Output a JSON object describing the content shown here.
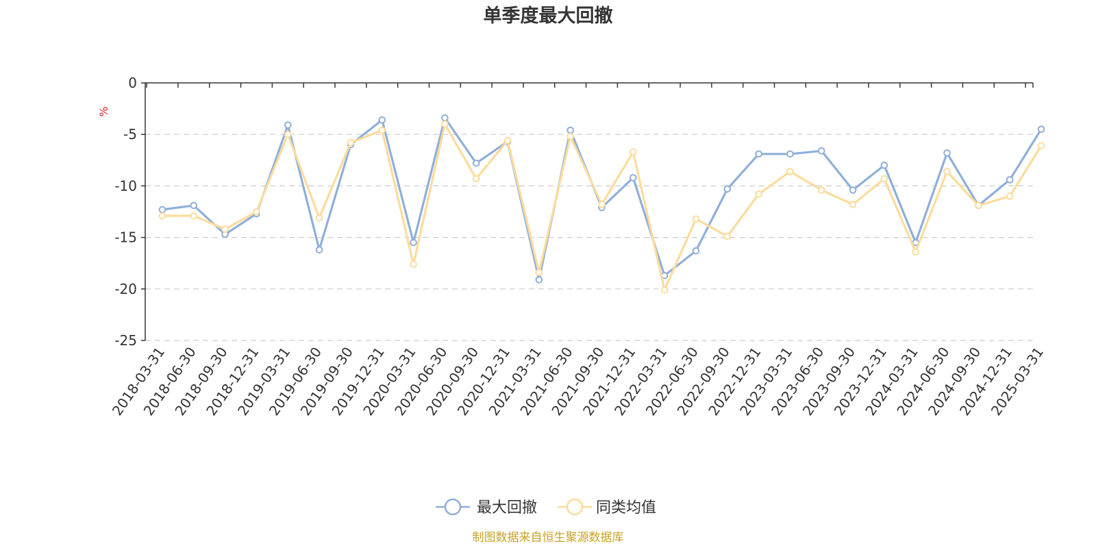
{
  "chart_data": {
    "type": "line",
    "title": "单季度最大回撤",
    "ylabel": "%",
    "ylim": [
      -25,
      0
    ],
    "yticks": [
      0,
      -5,
      -10,
      -15,
      -20,
      -25
    ],
    "grid": true,
    "legend_position": "bottom-center",
    "categories": [
      "2018-03-31",
      "2018-06-30",
      "2018-09-30",
      "2018-12-31",
      "2019-03-31",
      "2019-06-30",
      "2019-09-30",
      "2019-12-31",
      "2020-03-31",
      "2020-06-30",
      "2020-09-30",
      "2020-12-31",
      "2021-03-31",
      "2021-06-30",
      "2021-09-30",
      "2021-12-31",
      "2022-03-31",
      "2022-06-30",
      "2022-09-30",
      "2022-12-31",
      "2023-03-31",
      "2023-06-30",
      "2023-09-30",
      "2023-12-31",
      "2024-03-31",
      "2024-06-30",
      "2024-09-30",
      "2024-12-31",
      "2025-03-31"
    ],
    "series": [
      {
        "name": "最大回撤",
        "color": "#8eafd9",
        "values": [
          -12.3,
          -11.9,
          -14.7,
          -12.7,
          -4.1,
          -16.2,
          -6.0,
          -3.6,
          -15.5,
          -3.4,
          -7.8,
          -5.7,
          -19.1,
          -4.6,
          -12.1,
          -9.2,
          -18.7,
          -16.3,
          -10.3,
          -6.9,
          -6.9,
          -6.6,
          -10.4,
          -8.0,
          -15.5,
          -6.8,
          -11.9,
          -9.4,
          -4.5
        ]
      },
      {
        "name": "同类均值",
        "color": "#fddb9c",
        "values": [
          -12.9,
          -12.9,
          -14.2,
          -12.5,
          -5.0,
          -13.1,
          -5.8,
          -4.6,
          -17.6,
          -4.0,
          -9.3,
          -5.6,
          -18.4,
          -5.2,
          -11.8,
          -6.7,
          -20.1,
          -13.2,
          -14.9,
          -10.8,
          -8.6,
          -10.4,
          -11.8,
          -9.3,
          -16.4,
          -8.6,
          -11.9,
          -11.0,
          -6.1
        ]
      }
    ]
  },
  "footer": {
    "source_text": "制图数据来自恒生聚源数据库",
    "source_color": "#c9a227"
  },
  "colors": {
    "axis": "#333333",
    "grid": "#cccccc",
    "unit": "#e02020"
  }
}
